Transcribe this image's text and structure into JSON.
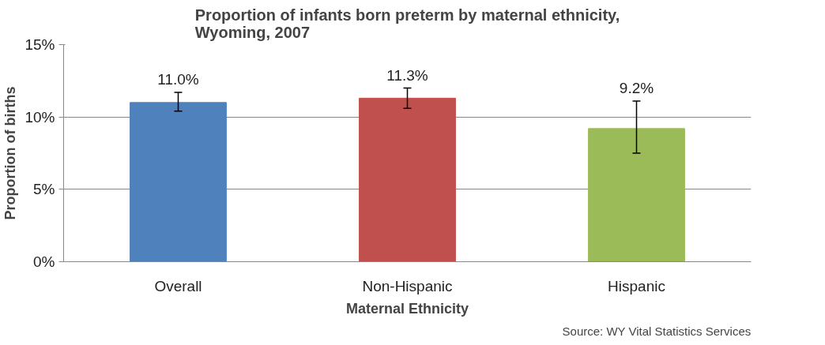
{
  "chart_data": {
    "type": "bar",
    "title": "Proportion of infants born preterm by maternal ethnicity,\nWyoming, 2007",
    "xlabel": "Maternal Ethnicity",
    "ylabel": "Proportion of births",
    "categories": [
      "Overall",
      "Non-Hispanic",
      "Hispanic"
    ],
    "values": [
      11.0,
      11.3,
      9.2
    ],
    "colors": [
      "#4f81bd",
      "#c0504d",
      "#9bbb59"
    ],
    "errors": [
      [
        10.4,
        11.7
      ],
      [
        10.6,
        12.0
      ],
      [
        7.5,
        11.1
      ]
    ],
    "value_labels": [
      "11.0%",
      "11.3%",
      "9.2%"
    ],
    "ylim": [
      0,
      15
    ],
    "yticks": [
      {
        "value": 0,
        "label": "0%"
      },
      {
        "value": 5,
        "label": "5%"
      },
      {
        "value": 10,
        "label": "10%"
      },
      {
        "value": 15,
        "label": "15%"
      }
    ],
    "grid": "y",
    "annotations": [
      "Source: WY Vital Statistics Services"
    ]
  }
}
